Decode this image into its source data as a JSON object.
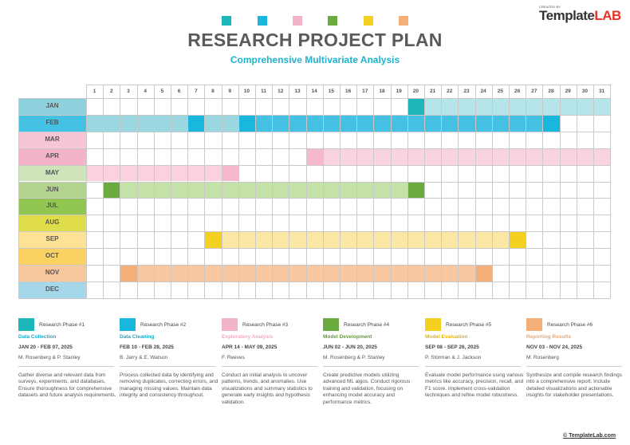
{
  "header": {
    "title": "RESEARCH PROJECT PLAN",
    "subtitle": "Comprehensive Multivariate Analysis",
    "brand_small": "CREATED BY",
    "brand_template": "Template",
    "brand_lab": "LAB"
  },
  "palette": [
    "#1db7bb",
    "#19b7dd",
    "#f4b4c8",
    "#6aaa3f",
    "#f4d020",
    "#f4ae78"
  ],
  "gantt": {
    "days": [
      "1",
      "2",
      "3",
      "4",
      "5",
      "6",
      "7",
      "8",
      "9",
      "10",
      "11",
      "12",
      "13",
      "14",
      "15",
      "16",
      "17",
      "18",
      "19",
      "20",
      "21",
      "22",
      "23",
      "24",
      "25",
      "26",
      "27",
      "28",
      "29",
      "30",
      "31"
    ],
    "months": [
      {
        "label": "JAN",
        "color": "#8ed1dd",
        "light": "#b5e4ea",
        "dark": "#1db7bb",
        "bar": [
          20,
          31
        ],
        "markers": [
          20
        ]
      },
      {
        "label": "FEB",
        "color": "#45c1e4",
        "light": "#9ad7e0",
        "dark": "#19b7dd",
        "bar": [
          1,
          28
        ],
        "markers": [
          7,
          10,
          28
        ],
        "split": 10
      },
      {
        "label": "MAR",
        "color": "#f6c6d6",
        "light": "",
        "dark": "",
        "bar": null,
        "markers": []
      },
      {
        "label": "APR",
        "color": "#f4b4c8",
        "light": "#fad3e0",
        "dark": "#f6b8cb",
        "bar": [
          14,
          31
        ],
        "markers": [
          14
        ]
      },
      {
        "label": "MAY",
        "color": "#cfe4b9",
        "light": "#fbd1de",
        "dark": "#f6b8cb",
        "bar": [
          1,
          9
        ],
        "markers": [
          9
        ]
      },
      {
        "label": "JUN",
        "color": "#b3d48f",
        "light": "#c4e1a8",
        "dark": "#6aaa3f",
        "bar": [
          2,
          20
        ],
        "markers": [
          2,
          20
        ]
      },
      {
        "label": "JUL",
        "color": "#92c653",
        "light": "",
        "dark": "",
        "bar": null,
        "markers": []
      },
      {
        "label": "AUG",
        "color": "#e0dd4b",
        "light": "",
        "dark": "",
        "bar": null,
        "markers": []
      },
      {
        "label": "SEP",
        "color": "#fde295",
        "light": "#fde7a4",
        "dark": "#f4d020",
        "bar": [
          8,
          26
        ],
        "markers": [
          8,
          26
        ]
      },
      {
        "label": "OCT",
        "color": "#fcd164",
        "light": "",
        "dark": "",
        "bar": null,
        "markers": []
      },
      {
        "label": "NOV",
        "color": "#f7c79e",
        "light": "#f8c6a0",
        "dark": "#f4ae78",
        "bar": [
          3,
          24
        ],
        "markers": [
          3,
          24
        ]
      },
      {
        "label": "DEC",
        "color": "#a6d6ea",
        "light": "",
        "dark": "",
        "bar": null,
        "markers": []
      }
    ]
  },
  "phases": [
    {
      "name": "Research Phase #1",
      "task": "Data Collection",
      "task_color": "#1fa9c6",
      "dates": "JAN 20 - FEB 07, 2025",
      "owner": "M. Rosenberg & P. Stanley",
      "desc": "Gather diverse and relevant data from surveys, experiments, and databases. Ensure thoroughness for comprehensive datasets and future analysis requirements."
    },
    {
      "name": "Research Phase #2",
      "task": "Data Cleaning",
      "task_color": "#1fa9c6",
      "dates": "FEB 10 - FEB 28, 2025",
      "owner": "B. Jarry & E. Watson",
      "desc": "Process collected data by identifying and removing duplicates, correcting errors, and managing missing values. Maintain data integrity and consistency throughout."
    },
    {
      "name": "Research Phase #3",
      "task": "Exploratory Analysis",
      "task_color": "#f3a8c0",
      "dates": "APR 14 - MAY 09, 2025",
      "owner": "F. Reeves",
      "desc": "Conduct an initial analysis to uncover patterns, trends, and anomalies. Use visualizations and summary statistics to generate early insights and hypothesis validation."
    },
    {
      "name": "Research Phase #4",
      "task": "Model Development",
      "task_color": "#5f9e34",
      "dates": "JUN 02 - JUN 20, 2025",
      "owner": "M. Rosenberg & P. Stanley",
      "desc": "Create predictive models utilizing advanced ML algos. Conduct rigorous training and validation, focusing on enhancing model accuracy and performance metrics."
    },
    {
      "name": "Research Phase #5",
      "task": "Model Evaluation",
      "task_color": "#e3b800",
      "dates": "SEP 08 - SEP 26, 2025",
      "owner": "P. Storman & J. Jackson",
      "desc": "Evaluate model performance using various metrics like accuracy, precision, recall, and F1 score. Implement cross-validation techniques and refine model robustness."
    },
    {
      "name": "Research Phase #6",
      "task": "Reporting Results",
      "task_color": "#f2a66c",
      "dates": "NOV 03 - NOV 24, 2025",
      "owner": "M. Rosenberg",
      "desc": "Synthesize and compile research findings into a comprehensive report. Include detailed visualizations and actionable insights for stakeholder presentations."
    }
  ],
  "footer": {
    "copyright": "© TemplateLab.com"
  }
}
